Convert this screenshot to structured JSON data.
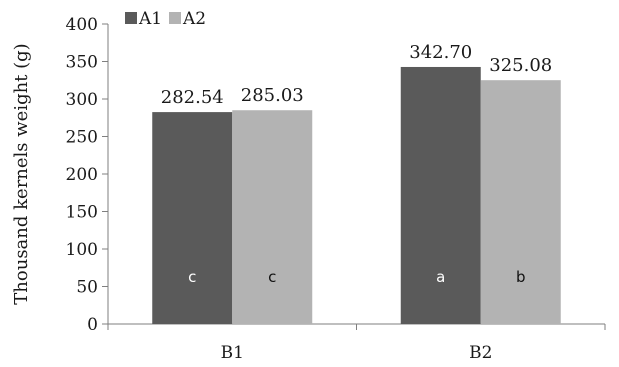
{
  "chart_data": {
    "type": "bar",
    "title": "",
    "xlabel": "",
    "ylabel": "Thousand kernels weight (g)",
    "ylim": [
      0,
      400
    ],
    "yticks": [
      0,
      50,
      100,
      150,
      200,
      250,
      300,
      350,
      400
    ],
    "categories": [
      "B1",
      "B2"
    ],
    "series": [
      {
        "name": "A1",
        "color": "#5a5a5a",
        "values": [
          282.54,
          342.7
        ],
        "value_labels": [
          "282.54",
          "342.70"
        ],
        "letters": [
          "c",
          "a"
        ],
        "letter_color": "#ffffff"
      },
      {
        "name": "A2",
        "color": "#b3b3b3",
        "values": [
          285.03,
          325.08
        ],
        "value_labels": [
          "285.03",
          "325.08"
        ],
        "letters": [
          "c",
          "b"
        ],
        "letter_color": "#111111"
      }
    ],
    "legend": "top-left",
    "grid": false
  }
}
